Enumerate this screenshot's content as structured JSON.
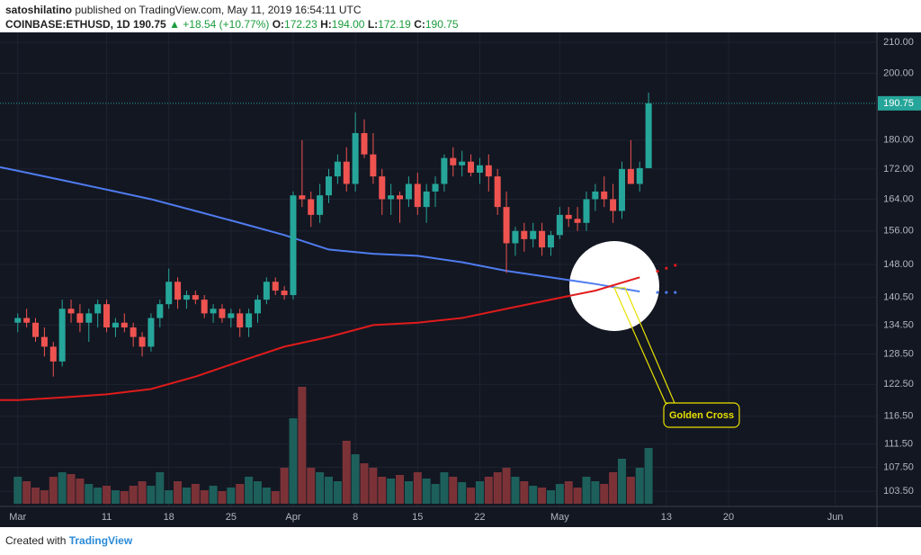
{
  "header": {
    "author": "satoshilatino",
    "published": "published on TradingView.com, May 11, 2019 16:54:11 UTC",
    "symbol": "COINBASE:ETHUSD, 1D",
    "price": "190.75",
    "change": "▲ +18.54 (+10.77%)",
    "ohlc": [
      {
        "label": "O:",
        "value": "172.23"
      },
      {
        "label": "H:",
        "value": "194.00"
      },
      {
        "label": "L:",
        "value": "172.19"
      },
      {
        "label": "C:",
        "value": "190.75"
      }
    ]
  },
  "footer": {
    "created": "Created with",
    "brand": "TradingView"
  },
  "chart_data": {
    "type": "candlestick",
    "log_scale": true,
    "grid": true,
    "up_color": "#26a69a",
    "down_color": "#ef5350",
    "volume_up_color": "#1d5f5b",
    "volume_down_color": "#7b3237",
    "xlim": [
      -2,
      96.7
    ],
    "ylim": [
      101.5,
      212.1
    ],
    "xticks": [
      {
        "value": 0,
        "label": "Mar"
      },
      {
        "value": 10,
        "label": "11"
      },
      {
        "value": 17,
        "label": "18"
      },
      {
        "value": 24,
        "label": "25"
      },
      {
        "value": 31,
        "label": "Apr"
      },
      {
        "value": 38,
        "label": "8"
      },
      {
        "value": 45,
        "label": "15"
      },
      {
        "value": 52,
        "label": "22"
      },
      {
        "value": 61,
        "label": "May"
      },
      {
        "value": 73,
        "label": "13"
      },
      {
        "value": 80,
        "label": "20"
      },
      {
        "value": 92,
        "label": "Jun"
      }
    ],
    "yticks": [
      {
        "value": 210,
        "label": "210.00"
      },
      {
        "value": 200,
        "label": "200.00"
      },
      {
        "value": 180,
        "label": "180.00"
      },
      {
        "value": 172,
        "label": "172.00"
      },
      {
        "value": 164,
        "label": "164.00"
      },
      {
        "value": 156,
        "label": "156.00"
      },
      {
        "value": 148,
        "label": "148.00"
      },
      {
        "value": 140.5,
        "label": "140.50"
      },
      {
        "value": 134.5,
        "label": "134.50"
      },
      {
        "value": 128.5,
        "label": "128.50"
      },
      {
        "value": 122.5,
        "label": "122.50"
      },
      {
        "value": 116.5,
        "label": "116.50"
      },
      {
        "value": 111.5,
        "label": "111.50"
      },
      {
        "value": 107.5,
        "label": "107.50"
      },
      {
        "value": 103.5,
        "label": "103.50"
      }
    ],
    "last_price": {
      "value": 190.75,
      "label": "190.75"
    },
    "candles": {
      "x": [
        0,
        1,
        2,
        3,
        4,
        5,
        6,
        7,
        8,
        9,
        10,
        11,
        12,
        13,
        14,
        15,
        16,
        17,
        18,
        19,
        20,
        21,
        22,
        23,
        24,
        25,
        26,
        27,
        28,
        29,
        30,
        31,
        32,
        33,
        34,
        35,
        36,
        37,
        38,
        39,
        40,
        41,
        42,
        43,
        44,
        45,
        46,
        47,
        48,
        49,
        50,
        51,
        52,
        53,
        54,
        55,
        56,
        57,
        58,
        59,
        60,
        61,
        62,
        63,
        64,
        65,
        66,
        67,
        68,
        69,
        70,
        71
      ],
      "open": [
        135,
        136,
        135,
        132,
        130,
        127,
        138,
        137,
        135,
        137,
        139,
        134,
        135,
        134,
        132,
        130,
        136,
        139,
        144,
        140,
        141,
        140,
        137,
        138,
        136,
        137,
        134,
        137,
        140,
        144,
        142,
        141,
        165,
        164,
        160,
        165,
        170,
        174,
        168,
        182,
        176,
        170,
        164,
        165,
        164,
        168,
        162,
        166,
        168,
        175,
        173,
        174,
        171,
        173,
        170,
        162,
        153,
        156,
        154,
        156,
        152,
        155,
        160,
        159,
        158,
        164,
        166,
        164,
        161,
        172,
        168,
        172.23
      ],
      "high": [
        137,
        138,
        136,
        134,
        131,
        140,
        140,
        139,
        138,
        140,
        140,
        136,
        137,
        135,
        133,
        137,
        140,
        147,
        145,
        142,
        142,
        141,
        139,
        139,
        138,
        138,
        138,
        141,
        145,
        145,
        143,
        166,
        180,
        166,
        168,
        172,
        176,
        178,
        188,
        186,
        182,
        172,
        168,
        166,
        170,
        171,
        168,
        170,
        176,
        178,
        177,
        176,
        175,
        176,
        172,
        166,
        157,
        158,
        158,
        158,
        156,
        162,
        162,
        162,
        166,
        168,
        170,
        168,
        174,
        180,
        174,
        194
      ],
      "low": [
        133,
        134,
        131,
        128,
        124,
        126,
        135,
        133,
        131,
        134,
        133,
        132,
        133,
        130,
        128,
        129,
        134,
        138,
        138,
        138,
        139,
        136,
        135,
        135,
        134,
        132,
        132,
        135,
        139,
        141,
        140,
        140,
        162,
        157,
        158,
        163,
        168,
        166,
        166,
        175,
        168,
        160,
        160,
        158,
        162,
        160,
        158,
        162,
        166,
        170,
        170,
        170,
        168,
        166,
        160,
        146,
        150,
        151,
        152,
        150,
        150,
        154,
        157,
        156,
        156,
        161,
        162,
        158,
        159,
        168,
        166,
        172.19
      ],
      "close": [
        136,
        135,
        132,
        130,
        127,
        138,
        137,
        135,
        137,
        139,
        134,
        135,
        134,
        132,
        130,
        136,
        139,
        144,
        140,
        141,
        140,
        137,
        138,
        136,
        137,
        134,
        137,
        140,
        144,
        142,
        141,
        165,
        164,
        160,
        165,
        170,
        174,
        168,
        182,
        176,
        170,
        164,
        165,
        164,
        168,
        162,
        166,
        168,
        175,
        173,
        174,
        171,
        173,
        170,
        162,
        153,
        156,
        154,
        156,
        152,
        155,
        160,
        159,
        158,
        164,
        166,
        164,
        161,
        172,
        168,
        172.23,
        190.75
      ]
    },
    "volume": [
      30,
      25,
      18,
      15,
      30,
      35,
      33,
      28,
      22,
      18,
      20,
      15,
      14,
      20,
      25,
      20,
      35,
      15,
      25,
      18,
      22,
      15,
      20,
      14,
      18,
      22,
      30,
      25,
      18,
      14,
      40,
      95,
      130,
      40,
      35,
      30,
      25,
      70,
      55,
      45,
      40,
      30,
      28,
      32,
      25,
      35,
      28,
      22,
      35,
      30,
      24,
      18,
      25,
      30,
      35,
      40,
      30,
      25,
      20,
      18,
      15,
      22,
      25,
      18,
      30,
      25,
      22,
      35,
      50,
      30,
      40,
      62
    ],
    "series": [
      {
        "color": "#4f7cf0",
        "x": [
          -2,
          0,
          5,
          10,
          15,
          20,
          25,
          30,
          35,
          40,
          45,
          50,
          55,
          60,
          65,
          70
        ],
        "values": [
          172.5,
          171.5,
          169,
          166.5,
          164,
          161,
          158,
          155,
          151.5,
          150.5,
          150,
          148.5,
          146.5,
          145,
          143.5,
          141.8
        ],
        "projection_x": [
          72,
          73,
          74
        ],
        "projection": [
          141.6,
          141.6,
          141.6
        ]
      },
      {
        "color": "#e01b1b",
        "x": [
          -2,
          0,
          5,
          10,
          15,
          20,
          25,
          30,
          35,
          40,
          45,
          50,
          55,
          60,
          65,
          70
        ],
        "values": [
          119.5,
          119.5,
          120,
          120.6,
          121.6,
          124,
          127,
          130,
          132,
          134.5,
          135,
          136,
          138,
          140,
          142,
          145
        ],
        "projection_x": [
          72,
          73,
          74
        ],
        "projection": [
          146.4,
          147.1,
          147.8
        ]
      }
    ],
    "annotation": "Golden Cross"
  }
}
